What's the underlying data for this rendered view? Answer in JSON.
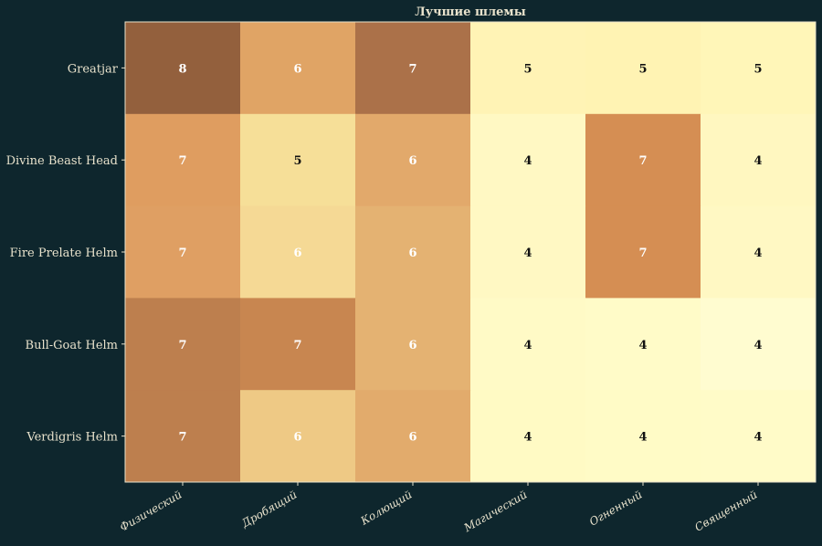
{
  "chart_data": {
    "type": "heatmap",
    "title": "Лучшие шлемы",
    "xlabel": "",
    "ylabel": "",
    "x_categories": [
      "Физический",
      "Дробящий",
      "Колющий",
      "Магический",
      "Огненный",
      "Священный"
    ],
    "y_categories": [
      "Greatjar",
      "Divine Beast Head",
      "Fire Prelate Helm",
      "Bull-Goat Helm",
      "Verdigris Helm"
    ],
    "values": [
      [
        8,
        6,
        7,
        5,
        5,
        5
      ],
      [
        7,
        5,
        6,
        4,
        7,
        4
      ],
      [
        7,
        6,
        6,
        4,
        7,
        4
      ],
      [
        7,
        7,
        6,
        4,
        4,
        4
      ],
      [
        7,
        6,
        6,
        4,
        4,
        4
      ]
    ],
    "colors": [
      [
        "#93603d",
        "#e0a465",
        "#ab7149",
        "#fff3b5",
        "#fff3b3",
        "#fff6b8"
      ],
      [
        "#df9d60",
        "#f6df98",
        "#e2a96b",
        "#fff8c3",
        "#d58e53",
        "#fff7c0"
      ],
      [
        "#df9f63",
        "#f5d995",
        "#e4b272",
        "#fff8c3",
        "#d58e53",
        "#fff8c3"
      ],
      [
        "#bd7f4e",
        "#c88650",
        "#e4b272",
        "#fffac6",
        "#fffbc8",
        "#fffcd0"
      ],
      [
        "#bd7f4e",
        "#eec985",
        "#e2ab6c",
        "#fffac4",
        "#fffbc6",
        "#fffbc8"
      ]
    ],
    "background": "#0e262d",
    "text_color": "#e8e2cc"
  }
}
